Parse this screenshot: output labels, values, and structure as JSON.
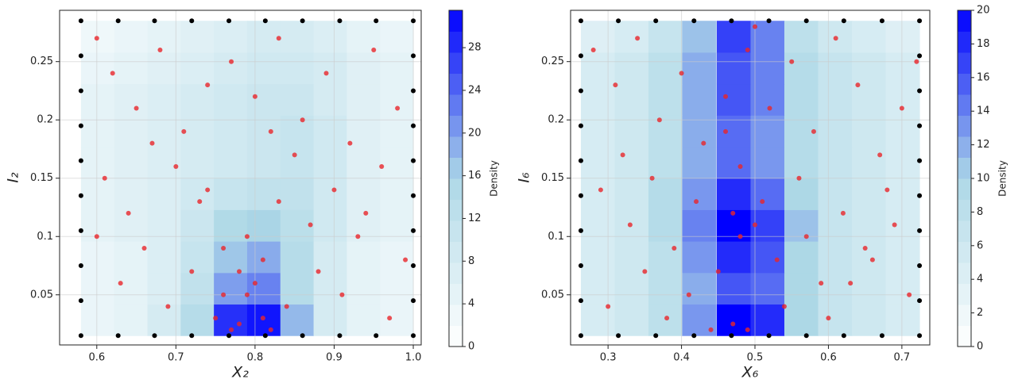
{
  "chart_data": [
    {
      "type": "scatter",
      "xlabel": "X₂",
      "ylabel": "I₂",
      "xlim": [
        0.553,
        1.01
      ],
      "ylim": [
        0.007,
        0.294
      ],
      "xticks": [
        0.6,
        0.7,
        0.8,
        0.9,
        {
          "value": 1.0,
          "label": "1.0"
        }
      ],
      "yticks": [
        0.05,
        0.1,
        0.15,
        0.2,
        0.25
      ],
      "grid": true,
      "colormap": [
        "#ffffff",
        "#add8e6",
        "#0000ff"
      ],
      "density": {
        "x": [
          0.601,
          0.643,
          0.685,
          0.727,
          0.769,
          0.811,
          0.853,
          0.895,
          0.937,
          0.979
        ],
        "y": [
          0.0285,
          0.0555,
          0.0825,
          0.1095,
          0.1365,
          0.1635,
          0.1905,
          0.2175,
          0.2445,
          0.2715
        ],
        "z": [
          [
            4,
            5,
            8,
            14,
            28,
            30,
            18,
            8,
            5,
            4
          ],
          [
            4,
            5,
            7,
            12,
            20,
            22,
            14,
            8,
            5,
            4
          ],
          [
            4,
            5,
            7,
            11,
            17,
            19,
            14,
            8,
            5,
            4
          ],
          [
            5,
            6,
            7,
            10,
            15,
            16,
            13,
            9,
            6,
            5
          ],
          [
            5,
            6,
            7,
            9,
            11,
            12,
            12,
            9,
            6,
            5
          ],
          [
            5,
            6,
            7,
            8,
            9,
            10,
            11,
            9,
            6,
            5
          ],
          [
            5,
            6,
            7,
            8,
            9,
            10,
            11,
            9,
            6,
            5
          ],
          [
            5,
            6,
            7,
            8,
            9,
            10,
            10,
            8,
            6,
            5
          ],
          [
            4,
            5,
            6,
            7,
            8,
            9,
            9,
            8,
            6,
            5
          ],
          [
            3,
            4,
            5,
            6,
            7,
            8,
            8,
            7,
            5,
            4
          ]
        ]
      },
      "colorbar": {
        "label": "Density",
        "lim": [
          0,
          31.5
        ],
        "ticks": [
          0,
          4,
          8,
          12,
          16,
          20,
          24,
          28
        ]
      },
      "points": [
        {
          "color": "#e8262a",
          "x": [
            0.6,
            0.62,
            0.65,
            0.68,
            0.71,
            0.74,
            0.77,
            0.8,
            0.83,
            0.86,
            0.89,
            0.92,
            0.95,
            0.98,
            0.61,
            0.64,
            0.7,
            0.73,
            0.76,
            0.78,
            0.79,
            0.81,
            0.82,
            0.84,
            0.87,
            0.9,
            0.93,
            0.96,
            0.99,
            0.63,
            0.66,
            0.69,
            0.72,
            0.75,
            0.77,
            0.78,
            0.8,
            0.81,
            0.79,
            0.76,
            0.83,
            0.85,
            0.88,
            0.91,
            0.94,
            0.97,
            0.6,
            0.67,
            0.74,
            0.82
          ],
          "y": [
            0.27,
            0.24,
            0.21,
            0.26,
            0.19,
            0.23,
            0.25,
            0.22,
            0.27,
            0.2,
            0.24,
            0.18,
            0.26,
            0.21,
            0.15,
            0.12,
            0.16,
            0.13,
            0.09,
            0.07,
            0.05,
            0.03,
            0.02,
            0.04,
            0.11,
            0.14,
            0.1,
            0.16,
            0.08,
            0.06,
            0.09,
            0.04,
            0.07,
            0.03,
            0.02,
            0.025,
            0.06,
            0.08,
            0.1,
            0.05,
            0.13,
            0.17,
            0.07,
            0.05,
            0.12,
            0.03,
            0.1,
            0.18,
            0.14,
            0.19
          ]
        },
        {
          "color": "#000000",
          "x": [
            0.58,
            0.627,
            0.673,
            0.72,
            0.767,
            0.813,
            0.86,
            0.907,
            0.953,
            1.0,
            0.58,
            0.627,
            0.673,
            0.72,
            0.767,
            0.813,
            0.86,
            0.907,
            0.953,
            1.0,
            0.58,
            0.58,
            0.58,
            0.58,
            0.58,
            0.58,
            0.58,
            0.58,
            1.0,
            1.0,
            1.0,
            1.0,
            1.0,
            1.0,
            1.0,
            1.0
          ],
          "y": [
            0.015,
            0.015,
            0.015,
            0.015,
            0.015,
            0.015,
            0.015,
            0.015,
            0.015,
            0.015,
            0.285,
            0.285,
            0.285,
            0.285,
            0.285,
            0.285,
            0.285,
            0.285,
            0.285,
            0.285,
            0.045,
            0.075,
            0.105,
            0.135,
            0.165,
            0.195,
            0.225,
            0.255,
            0.045,
            0.075,
            0.105,
            0.135,
            0.165,
            0.195,
            0.225,
            0.255
          ]
        }
      ]
    },
    {
      "type": "scatter",
      "xlabel": "X₆",
      "ylabel": "I₆",
      "xlim": [
        0.249,
        0.738
      ],
      "ylim": [
        0.007,
        0.294
      ],
      "xticks": [
        0.3,
        0.4,
        0.5,
        0.6,
        0.7
      ],
      "yticks": [
        0.05,
        0.1,
        0.15,
        0.2,
        0.25
      ],
      "grid": true,
      "colormap": [
        "#ffffff",
        "#add8e6",
        "#0000ff"
      ],
      "density": {
        "x": [
          0.286,
          0.332,
          0.378,
          0.424,
          0.471,
          0.517,
          0.563,
          0.609,
          0.655,
          0.701
        ],
        "y": [
          0.0285,
          0.0555,
          0.0825,
          0.1095,
          0.1365,
          0.1635,
          0.1905,
          0.2175,
          0.2445,
          0.2715
        ],
        "z": [
          [
            5,
            6,
            8,
            13,
            20,
            18,
            10,
            7,
            6,
            5
          ],
          [
            5,
            6,
            8,
            12,
            16,
            15,
            10,
            7,
            6,
            5
          ],
          [
            5,
            6,
            8,
            13,
            18,
            16,
            10,
            7,
            6,
            5
          ],
          [
            5,
            6,
            9,
            14,
            20,
            17,
            11,
            7,
            6,
            5
          ],
          [
            5,
            6,
            9,
            13,
            18,
            15,
            10,
            7,
            6,
            5
          ],
          [
            5,
            6,
            8,
            12,
            15,
            13,
            9,
            7,
            6,
            5
          ],
          [
            5,
            6,
            8,
            12,
            15,
            13,
            9,
            7,
            6,
            5
          ],
          [
            5,
            6,
            8,
            12,
            16,
            14,
            9,
            7,
            6,
            5
          ],
          [
            5,
            6,
            8,
            12,
            16,
            14,
            9,
            7,
            6,
            5
          ],
          [
            4,
            5,
            7,
            11,
            17,
            14,
            8,
            6,
            5,
            4
          ]
        ]
      },
      "colorbar": {
        "label": "Density",
        "lim": [
          0,
          20
        ],
        "ticks": [
          0,
          2,
          4,
          6,
          8,
          10,
          12,
          14,
          16,
          18,
          20
        ]
      },
      "points": [
        {
          "color": "#e8262a",
          "x": [
            0.28,
            0.31,
            0.34,
            0.37,
            0.4,
            0.43,
            0.46,
            0.49,
            0.52,
            0.55,
            0.58,
            0.61,
            0.64,
            0.67,
            0.7,
            0.72,
            0.29,
            0.33,
            0.36,
            0.39,
            0.42,
            0.45,
            0.47,
            0.48,
            0.5,
            0.51,
            0.53,
            0.56,
            0.59,
            0.62,
            0.65,
            0.68,
            0.71,
            0.3,
            0.35,
            0.38,
            0.41,
            0.44,
            0.47,
            0.49,
            0.48,
            0.46,
            0.5,
            0.54,
            0.57,
            0.6,
            0.63,
            0.66,
            0.69,
            0.32
          ],
          "y": [
            0.26,
            0.23,
            0.27,
            0.2,
            0.24,
            0.18,
            0.22,
            0.26,
            0.21,
            0.25,
            0.19,
            0.27,
            0.23,
            0.17,
            0.21,
            0.25,
            0.14,
            0.11,
            0.15,
            0.09,
            0.13,
            0.07,
            0.12,
            0.1,
            0.11,
            0.13,
            0.08,
            0.15,
            0.06,
            0.12,
            0.09,
            0.14,
            0.05,
            0.04,
            0.07,
            0.03,
            0.05,
            0.02,
            0.025,
            0.02,
            0.16,
            0.19,
            0.28,
            0.04,
            0.1,
            0.03,
            0.06,
            0.08,
            0.11,
            0.17
          ]
        },
        {
          "color": "#000000",
          "x": [
            0.263,
            0.314,
            0.365,
            0.417,
            0.468,
            0.519,
            0.57,
            0.621,
            0.673,
            0.724,
            0.263,
            0.314,
            0.365,
            0.417,
            0.468,
            0.519,
            0.57,
            0.621,
            0.673,
            0.724,
            0.263,
            0.263,
            0.263,
            0.263,
            0.263,
            0.263,
            0.263,
            0.263,
            0.724,
            0.724,
            0.724,
            0.724,
            0.724,
            0.724,
            0.724,
            0.724
          ],
          "y": [
            0.015,
            0.015,
            0.015,
            0.015,
            0.015,
            0.015,
            0.015,
            0.015,
            0.015,
            0.015,
            0.285,
            0.285,
            0.285,
            0.285,
            0.285,
            0.285,
            0.285,
            0.285,
            0.285,
            0.285,
            0.045,
            0.075,
            0.105,
            0.135,
            0.165,
            0.195,
            0.225,
            0.255,
            0.045,
            0.075,
            0.105,
            0.135,
            0.165,
            0.195,
            0.225,
            0.255
          ]
        }
      ]
    }
  ]
}
